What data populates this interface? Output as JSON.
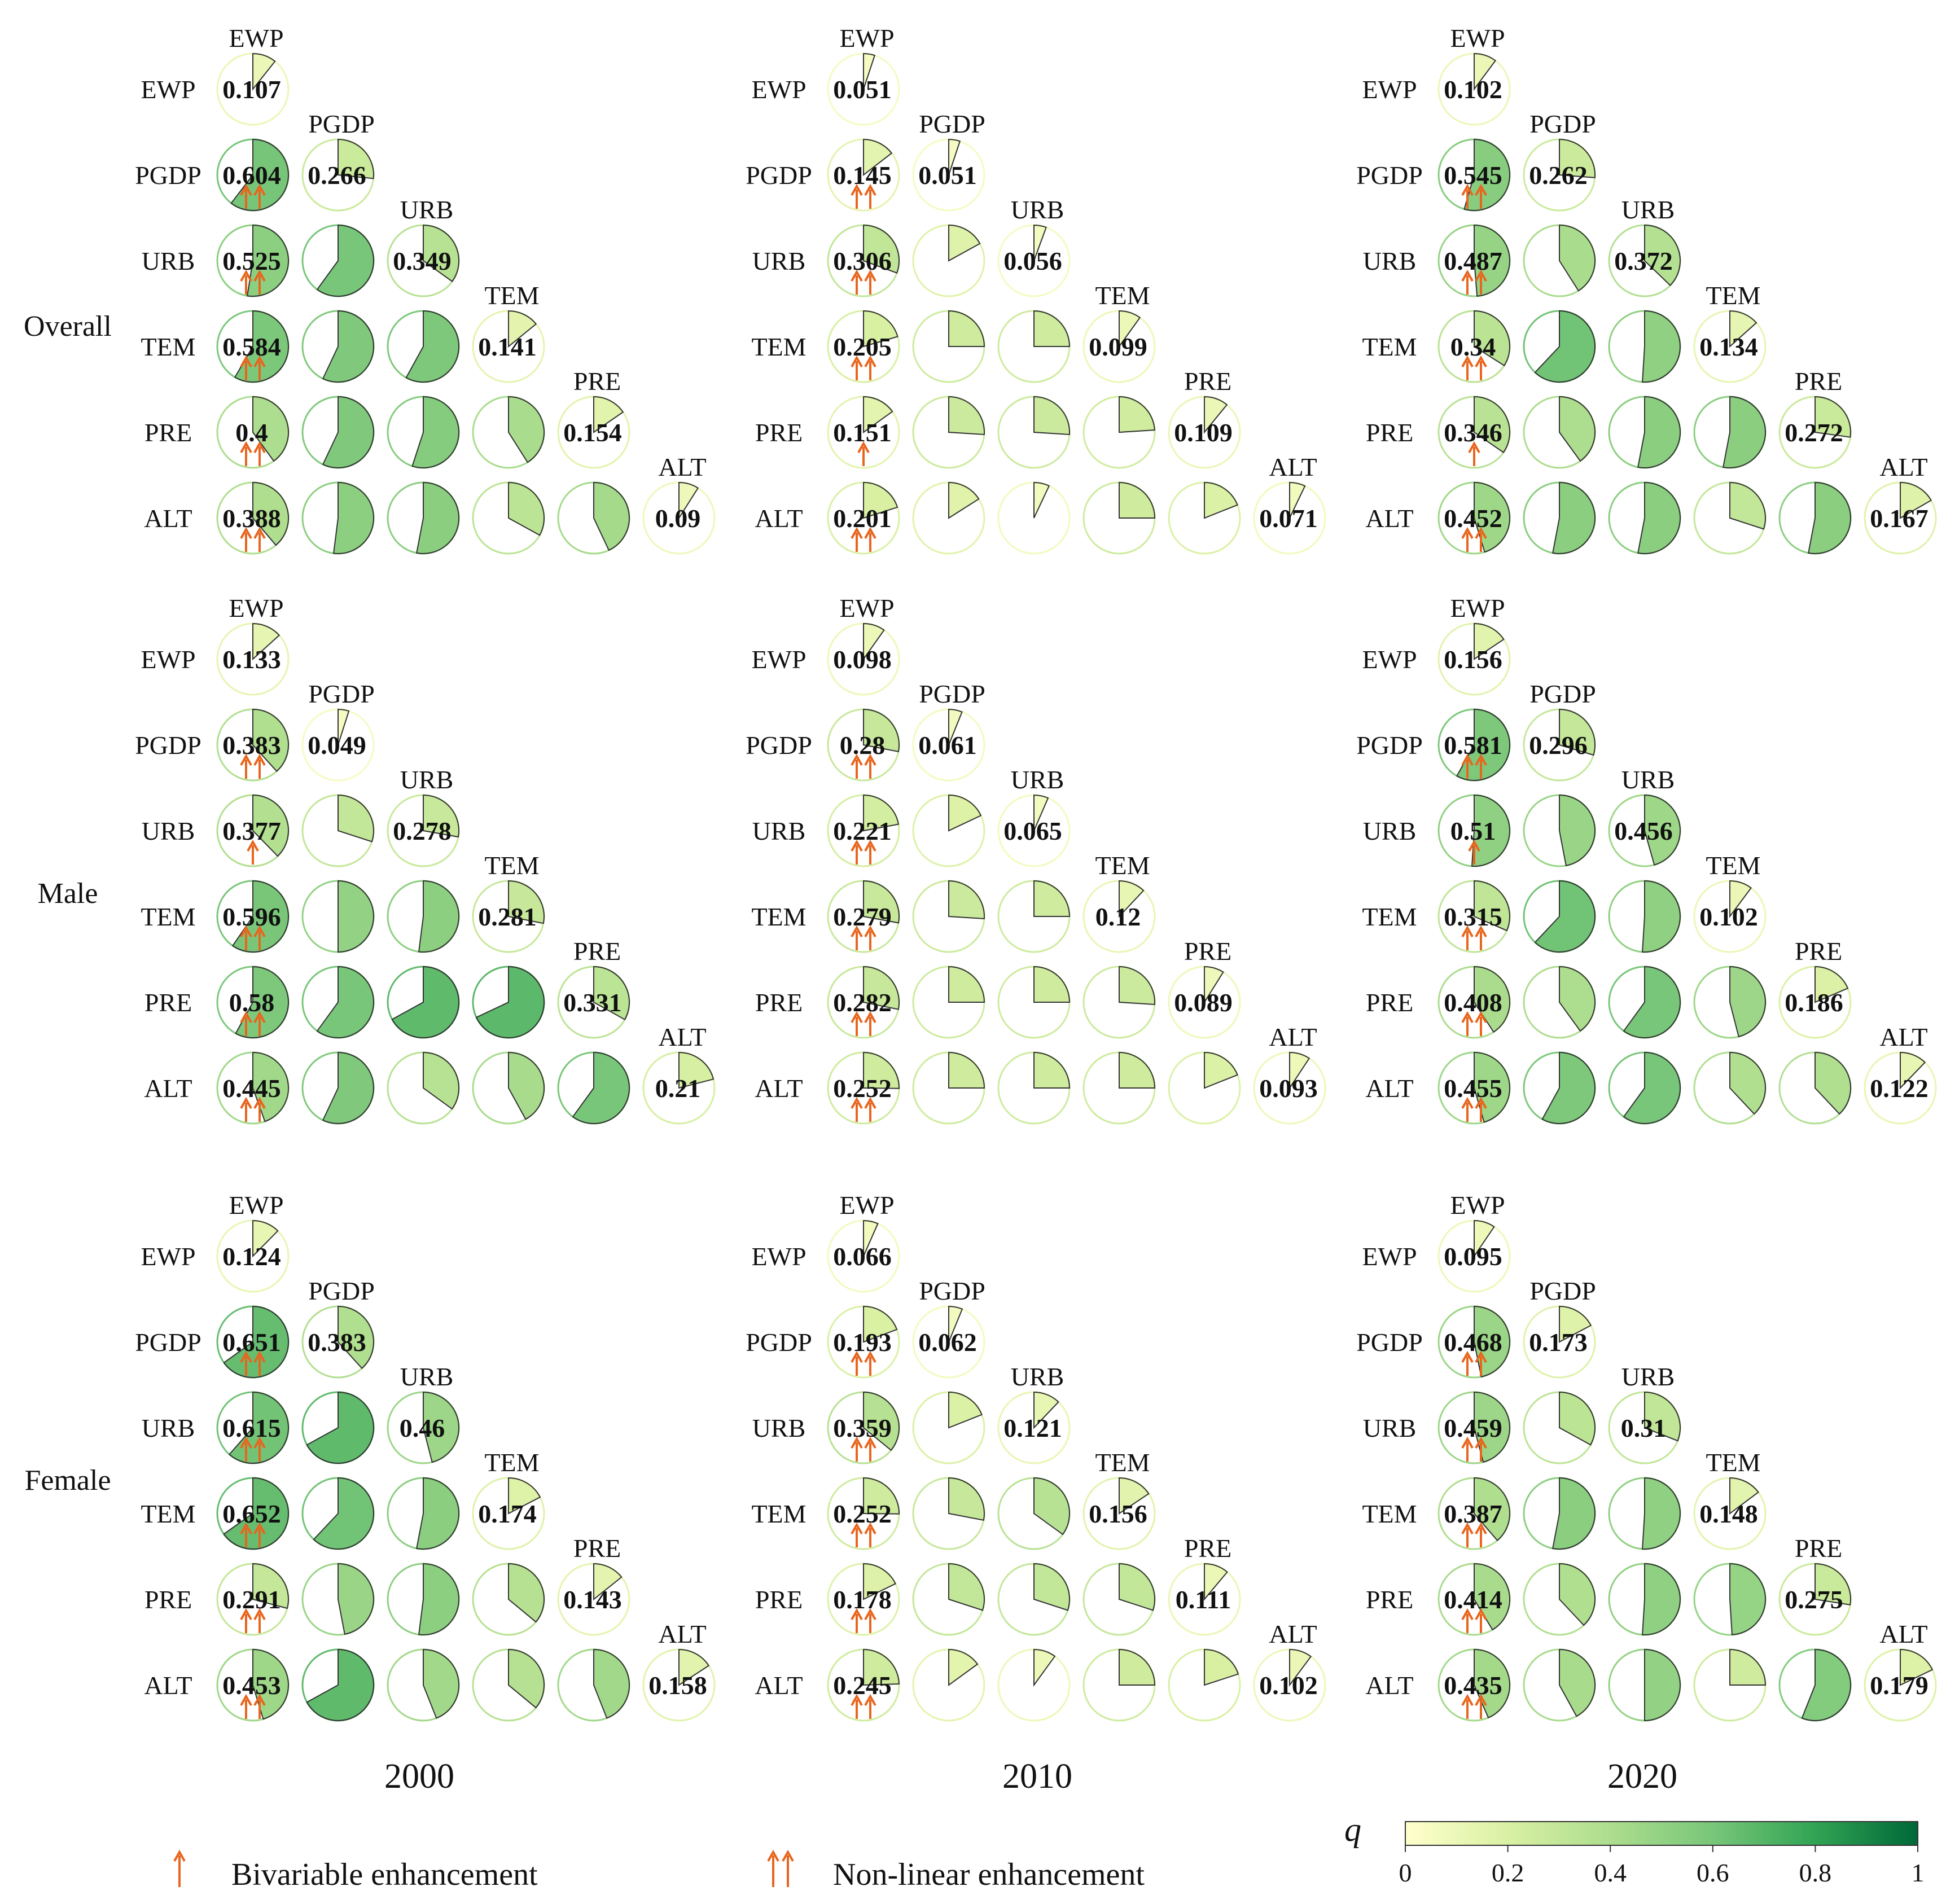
{
  "chart_data": {
    "type": "pie-matrix",
    "title": "",
    "factors": [
      "EWP",
      "PGDP",
      "URB",
      "TEM",
      "PRE",
      "ALT"
    ],
    "years": [
      "2000",
      "2010",
      "2020"
    ],
    "groups": [
      "Overall",
      "Male",
      "Female"
    ],
    "colorbar": {
      "label": "q",
      "range": [
        0,
        1
      ],
      "ticks": [
        "0",
        "0.2",
        "0.4",
        "0.6",
        "0.8",
        "1"
      ],
      "colors": [
        "#ffffcc",
        "#d9f0a3",
        "#addd8e",
        "#78c679",
        "#31a354",
        "#006837"
      ]
    },
    "legend": [
      {
        "symbol": "↑",
        "label": "Bivariable  enhancement"
      },
      {
        "symbol": "↑↑",
        "label": "Non-linear enhancement"
      }
    ],
    "panels": [
      {
        "group": "Overall",
        "year": "2000",
        "singles": [
          "0.107",
          "0.266",
          "0.349",
          "0.141",
          "0.154",
          "0.09"
        ],
        "ewp_pairs": [
          "0.604",
          "0.525",
          "0.584",
          "0.4",
          "0.388"
        ],
        "enh": [
          2,
          2,
          2,
          2,
          2
        ],
        "others": [
          0.6,
          0.57,
          0.58,
          0.57,
          0.55,
          0.41,
          0.52,
          0.53,
          0.33,
          0.43
        ]
      },
      {
        "group": "Overall",
        "year": "2010",
        "singles": [
          "0.051",
          "0.051",
          "0.056",
          "0.099",
          "0.109",
          "0.071"
        ],
        "ewp_pairs": [
          "0.145",
          "0.306",
          "0.205",
          "0.151",
          "0.201"
        ],
        "enh": [
          2,
          2,
          2,
          1,
          2
        ],
        "others": [
          0.17,
          0.25,
          0.25,
          0.26,
          0.26,
          0.24,
          0.16,
          0.07,
          0.25,
          0.19
        ]
      },
      {
        "group": "Overall",
        "year": "2020",
        "singles": [
          "0.102",
          "0.262",
          "0.372",
          "0.134",
          "0.272",
          "0.167"
        ],
        "ewp_pairs": [
          "0.545",
          "0.487",
          "0.34",
          "0.346",
          "0.452"
        ],
        "enh": [
          2,
          2,
          2,
          1,
          2
        ],
        "others": [
          0.41,
          0.62,
          0.51,
          0.4,
          0.53,
          0.53,
          0.53,
          0.53,
          0.3,
          0.53
        ]
      },
      {
        "group": "Male",
        "year": "2000",
        "singles": [
          "0.133",
          "0.049",
          "0.278",
          "0.281",
          "0.331",
          "0.21"
        ],
        "ewp_pairs": [
          "0.383",
          "0.377",
          "0.596",
          "0.58",
          "0.445"
        ],
        "enh": [
          2,
          1,
          2,
          2,
          2
        ],
        "others": [
          0.3,
          0.5,
          0.52,
          0.6,
          0.67,
          0.68,
          0.57,
          0.35,
          0.42,
          0.6
        ]
      },
      {
        "group": "Male",
        "year": "2010",
        "singles": [
          "0.098",
          "0.061",
          "0.065",
          "0.12",
          "0.089",
          "0.093"
        ],
        "ewp_pairs": [
          "0.28",
          "0.221",
          "0.279",
          "0.282",
          "0.252"
        ],
        "enh": [
          2,
          2,
          2,
          2,
          2
        ],
        "others": [
          0.18,
          0.26,
          0.25,
          0.25,
          0.25,
          0.26,
          0.25,
          0.25,
          0.25,
          0.19
        ]
      },
      {
        "group": "Male",
        "year": "2020",
        "singles": [
          "0.156",
          "0.296",
          "0.456",
          "0.102",
          "0.186",
          "0.122"
        ],
        "ewp_pairs": [
          "0.581",
          "0.51",
          "0.315",
          "0.408",
          "0.455"
        ],
        "enh": [
          2,
          1,
          2,
          2,
          2
        ],
        "others": [
          0.47,
          0.62,
          0.51,
          0.4,
          0.6,
          0.46,
          0.58,
          0.6,
          0.38,
          0.38
        ]
      },
      {
        "group": "Female",
        "year": "2000",
        "singles": [
          "0.124",
          "0.383",
          "0.46",
          "0.174",
          "0.143",
          "0.158"
        ],
        "ewp_pairs": [
          "0.651",
          "0.615",
          "0.652",
          "0.291",
          "0.453"
        ],
        "enh": [
          2,
          2,
          2,
          2,
          2
        ],
        "others": [
          0.67,
          0.62,
          0.53,
          0.47,
          0.52,
          0.36,
          0.67,
          0.44,
          0.36,
          0.44
        ]
      },
      {
        "group": "Female",
        "year": "2010",
        "singles": [
          "0.066",
          "0.062",
          "0.121",
          "0.156",
          "0.111",
          "0.102"
        ],
        "ewp_pairs": [
          "0.193",
          "0.359",
          "0.252",
          "0.178",
          "0.245"
        ],
        "enh": [
          2,
          2,
          2,
          2,
          2
        ],
        "others": [
          0.19,
          0.28,
          0.35,
          0.3,
          0.3,
          0.3,
          0.15,
          0.1,
          0.25,
          0.2
        ]
      },
      {
        "group": "Female",
        "year": "2020",
        "singles": [
          "0.095",
          "0.173",
          "0.31",
          "0.148",
          "0.275",
          "0.179"
        ],
        "ewp_pairs": [
          "0.468",
          "0.459",
          "0.387",
          "0.414",
          "0.435"
        ],
        "enh": [
          2,
          2,
          2,
          2,
          2
        ],
        "others": [
          0.33,
          0.53,
          0.51,
          0.38,
          0.51,
          0.49,
          0.42,
          0.5,
          0.25,
          0.56
        ]
      }
    ]
  }
}
